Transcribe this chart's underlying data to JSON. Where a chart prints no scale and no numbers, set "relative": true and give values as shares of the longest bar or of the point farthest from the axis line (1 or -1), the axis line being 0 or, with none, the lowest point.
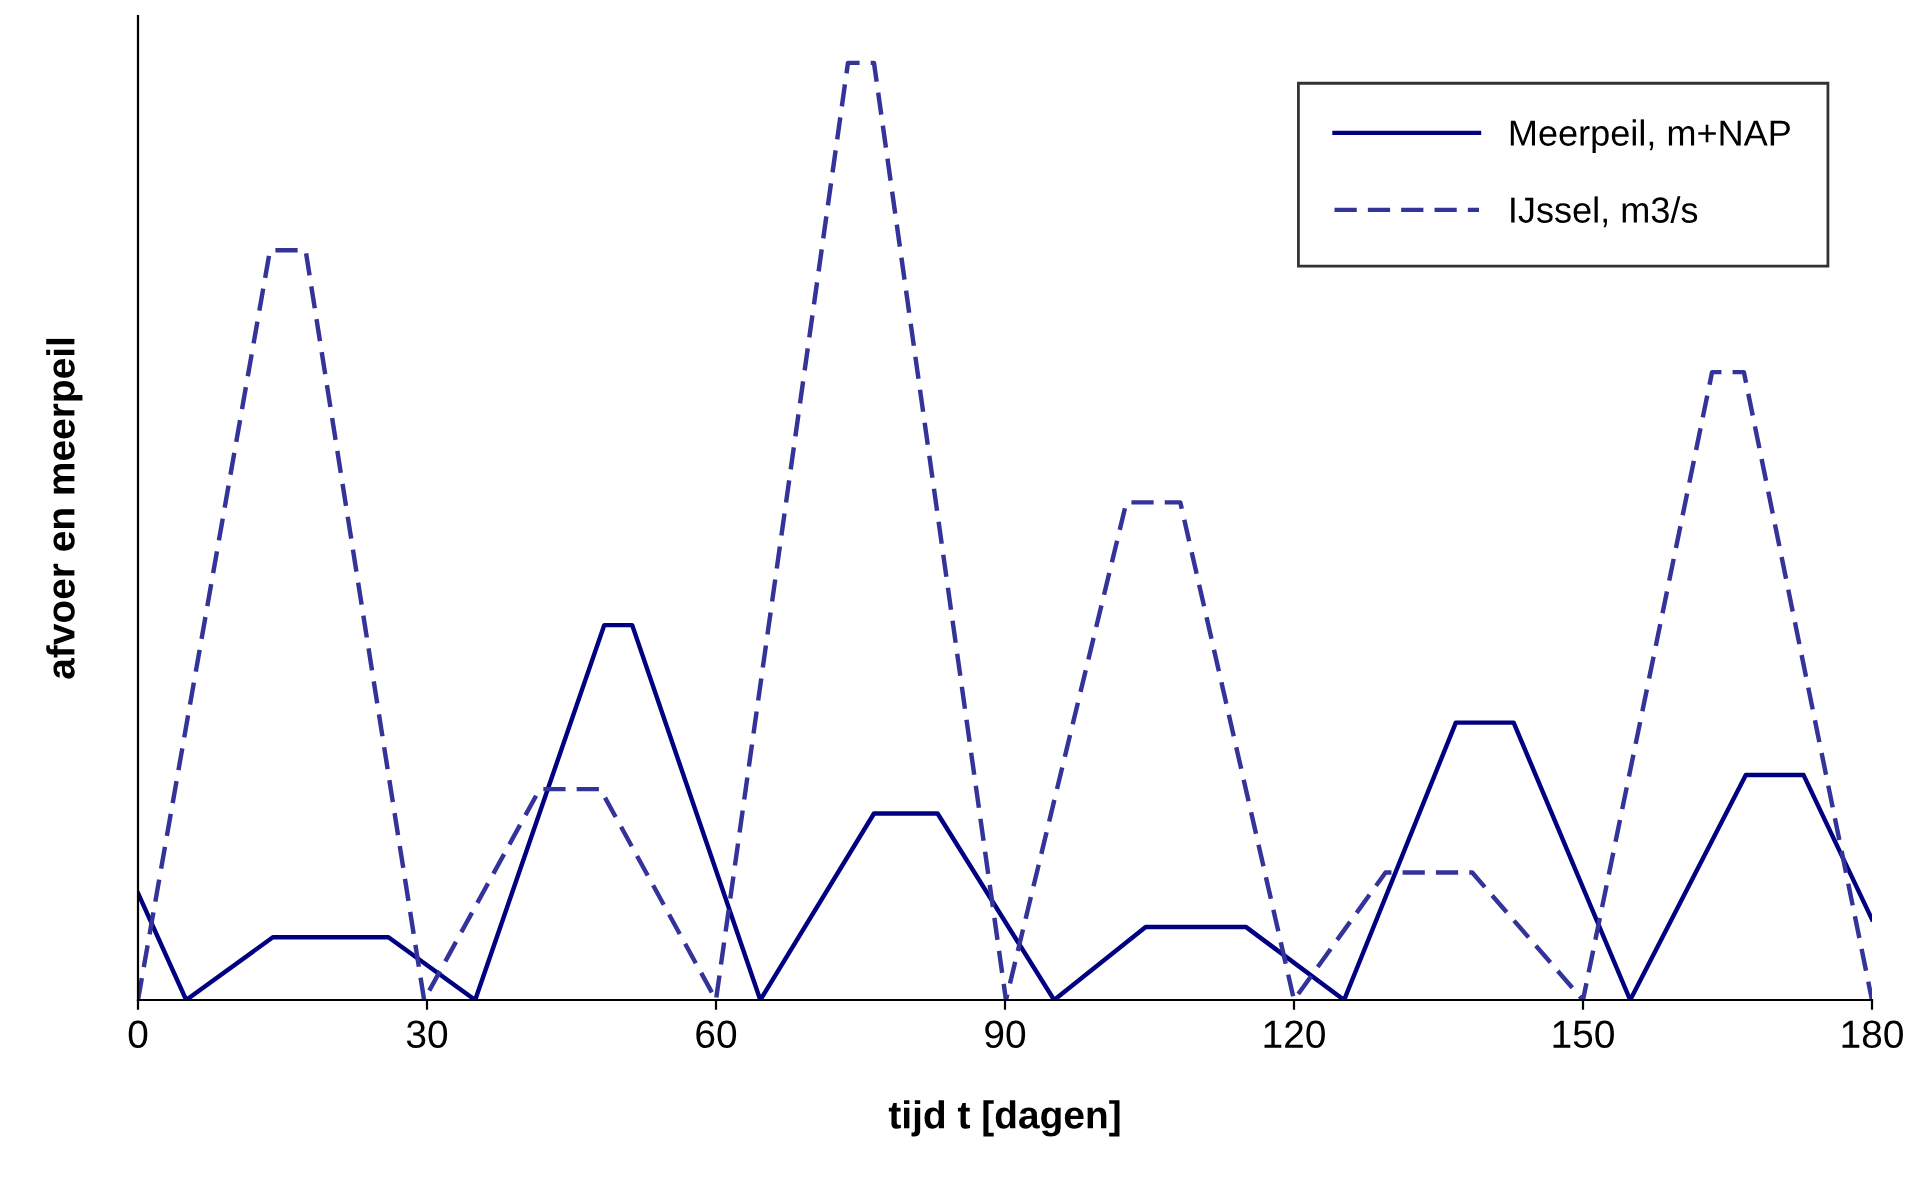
{
  "chart_data": {
    "type": "line",
    "relative": true,
    "xlabel": "tijd t [dagen]",
    "ylabel": "afvoer en meerpeil",
    "xlim": [
      0,
      180
    ],
    "xticks": [
      0,
      30,
      60,
      90,
      120,
      150,
      180
    ],
    "legend": "top right",
    "grid": false,
    "series": [
      {
        "name": "Meerpeil, m+NAP",
        "color": "#000080",
        "line_style": "solid",
        "x": [
          0,
          5,
          14,
          26,
          35,
          48.4,
          51.3,
          64.6,
          76.4,
          83,
          95.1,
          104.6,
          115,
          125.2,
          136.8,
          142.8,
          154.9,
          166.9,
          172.9,
          180
        ],
        "values": [
          0.114,
          0,
          0.067,
          0.067,
          0,
          0.4,
          0.4,
          0,
          0.199,
          0.199,
          0,
          0.078,
          0.078,
          0,
          0.296,
          0.296,
          0,
          0.24,
          0.24,
          0.086
        ]
      },
      {
        "name": "IJssel, m3/s",
        "color": "#333399",
        "line_style": "dashed",
        "x": [
          0,
          13.7,
          17.4,
          29.7,
          41.7,
          48,
          60,
          73.7,
          76.4,
          90.1,
          102.6,
          108.2,
          120,
          129.5,
          138.5,
          150,
          163.4,
          166.7,
          180
        ],
        "values": [
          0,
          0.8,
          0.8,
          0,
          0.225,
          0.225,
          0,
          1,
          1,
          0,
          0.531,
          0.531,
          0,
          0.136,
          0.136,
          0,
          0.67,
          0.67,
          0
        ]
      }
    ]
  }
}
